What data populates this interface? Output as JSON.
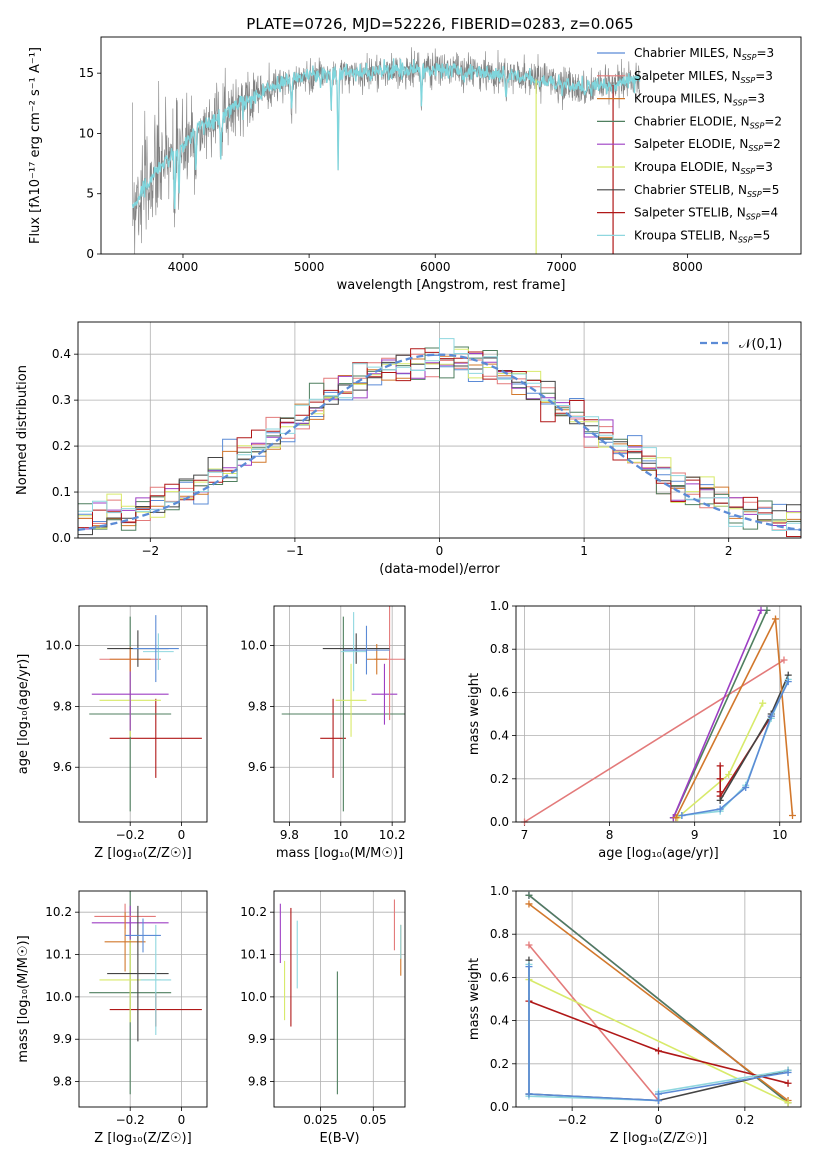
{
  "figure": {
    "title": "PLATE=0726, MJD=52226, FIBERID=0283, z=0.065"
  },
  "chart_data": [
    {
      "id": "spectrum",
      "type": "line",
      "xlabel": "wavelength [Angstrom, rest frame]",
      "ylabel": "Flux [fλ10⁻¹⁷ erg cm⁻² s⁻¹ A⁻¹]",
      "xlim": [
        3350,
        8900
      ],
      "ylim": [
        0,
        18
      ],
      "xticks": [
        4000,
        5000,
        6000,
        7000,
        8000
      ],
      "yticks": [
        0,
        5,
        10,
        15
      ],
      "grid": false,
      "legend_placement": "upper-right",
      "legend": [
        {
          "label": "Chabrier MILES, N",
          "sub": "SSP",
          "suffix": "=3",
          "color": "#5b8bd6"
        },
        {
          "label": "Salpeter MILES, N",
          "sub": "SSP",
          "suffix": "=3",
          "color": "#e37a7a"
        },
        {
          "label": "Kroupa MILES, N",
          "sub": "SSP",
          "suffix": "=3",
          "color": "#d2782c"
        },
        {
          "label": "Chabrier ELODIE, N",
          "sub": "SSP",
          "suffix": "=2",
          "color": "#4f7f5f"
        },
        {
          "label": "Salpeter ELODIE, N",
          "sub": "SSP",
          "suffix": "=2",
          "color": "#9d3fc4"
        },
        {
          "label": "Kroupa ELODIE, N",
          "sub": "SSP",
          "suffix": "=3",
          "color": "#d8ea6a"
        },
        {
          "label": "Chabrier STELIB, N",
          "sub": "SSP",
          "suffix": "=5",
          "color": "#444444"
        },
        {
          "label": "Salpeter STELIB, N",
          "sub": "SSP",
          "suffix": "=4",
          "color": "#b01818"
        },
        {
          "label": "Kroupa STELIB, N",
          "sub": "SSP",
          "suffix": "=5",
          "color": "#8fd7df"
        }
      ],
      "data_color": "#808080",
      "model_color": "#7fd6dd",
      "continuum": {
        "x": [
          3600,
          3700,
          3800,
          3900,
          4000,
          4100,
          4200,
          4300,
          4400,
          4600,
          4800,
          5000,
          5200,
          5400,
          5600,
          5800,
          6000,
          6200,
          6400,
          6600,
          6800,
          7000,
          7200,
          7400,
          7600
        ],
        "y": [
          4,
          5.5,
          7,
          8,
          9,
          10.2,
          10.8,
          11.5,
          12.2,
          13.3,
          14.2,
          14.8,
          15.0,
          15.0,
          15.2,
          15.3,
          15.3,
          15.2,
          15.0,
          14.8,
          14.5,
          14.0,
          13.8,
          14.0,
          14.5
        ]
      },
      "dips": [
        {
          "x": 3934,
          "depth": 5
        },
        {
          "x": 3968,
          "depth": 4
        },
        {
          "x": 4102,
          "depth": 3
        },
        {
          "x": 4300,
          "depth": 3
        },
        {
          "x": 4861,
          "depth": 2.5
        },
        {
          "x": 5175,
          "depth": 3
        },
        {
          "x": 5230,
          "depth": 8
        },
        {
          "x": 5890,
          "depth": 3
        },
        {
          "x": 6563,
          "depth": 2
        }
      ],
      "drop_lines": [
        {
          "x": 6800,
          "color": "#d8ea6a"
        },
        {
          "x": 7410,
          "color": "#b01818"
        }
      ]
    },
    {
      "id": "residuals",
      "type": "histogram",
      "xlabel": "(data-model)/error",
      "ylabel": "Normed distribution",
      "xlim": [
        -2.5,
        2.5
      ],
      "ylim": [
        0,
        0.47
      ],
      "xticks": [
        -2,
        -1,
        0,
        1,
        2
      ],
      "yticks": [
        0.0,
        0.1,
        0.2,
        0.3,
        0.4
      ],
      "grid": true,
      "legend_placement": "upper-right",
      "gaussian_label": "𝒩(0,1)",
      "gaussian_color": "#5b8bd6",
      "bin_edges_from": -2.5,
      "bin_width": 0.1
    },
    {
      "id": "age_vs_Z",
      "type": "errorbar",
      "xlabel": "Z [log₁₀(Z/Z☉)]",
      "ylabel": "age  [log₁₀(age/yr)]",
      "xlim": [
        -0.4,
        0.1
      ],
      "ylim": [
        9.42,
        10.13
      ],
      "xticks": [
        -0.2,
        0.0
      ],
      "yticks": [
        9.6,
        9.8,
        10.0
      ],
      "grid": true,
      "points": [
        {
          "x": -0.1,
          "y": 9.695,
          "xerr": 0.18,
          "yerr": 0.13,
          "color": "#b01818"
        },
        {
          "x": -0.2,
          "y": 9.775,
          "xerr": 0.16,
          "yerr": 0.32,
          "color": "#4f7f5f"
        },
        {
          "x": -0.2,
          "y": 9.82,
          "xerr": 0.12,
          "yerr": 0.12,
          "color": "#d8ea6a"
        },
        {
          "x": -0.2,
          "y": 9.84,
          "xerr": 0.15,
          "yerr": 0.12,
          "color": "#9d3fc4"
        },
        {
          "x": -0.2,
          "y": 9.955,
          "xerr": 0.12,
          "yerr": 0.04,
          "color": "#e37a7a"
        },
        {
          "x": -0.2,
          "y": 9.955,
          "xerr": 0.08,
          "yerr": 0.04,
          "color": "#d2782c"
        },
        {
          "x": -0.17,
          "y": 9.99,
          "xerr": 0.12,
          "yerr": 0.06,
          "color": "#444444"
        },
        {
          "x": -0.09,
          "y": 9.98,
          "xerr": 0.06,
          "yerr": 0.06,
          "color": "#8fd7df"
        },
        {
          "x": -0.1,
          "y": 9.99,
          "xerr": 0.09,
          "yerr": 0.11,
          "color": "#5b8bd6"
        }
      ]
    },
    {
      "id": "age_vs_mass",
      "type": "errorbar",
      "xlabel": "mass [log₁₀(M/M☉)]",
      "ylabel": "",
      "xlim": [
        9.74,
        10.25
      ],
      "ylim": [
        9.42,
        10.13
      ],
      "xticks": [
        9.8,
        10.0,
        10.2
      ],
      "yticks": [
        9.6,
        9.8,
        10.0
      ],
      "grid": true,
      "points": [
        {
          "x": 9.97,
          "y": 9.695,
          "xerr": 0.05,
          "yerr": 0.13,
          "color": "#b01818"
        },
        {
          "x": 10.01,
          "y": 9.775,
          "xerr": 0.24,
          "yerr": 0.32,
          "color": "#4f7f5f"
        },
        {
          "x": 10.04,
          "y": 9.82,
          "xerr": 0.06,
          "yerr": 0.12,
          "color": "#d8ea6a"
        },
        {
          "x": 10.17,
          "y": 9.84,
          "xerr": 0.05,
          "yerr": 0.1,
          "color": "#9d3fc4"
        },
        {
          "x": 10.19,
          "y": 9.955,
          "xerr": 0.06,
          "yerr": 0.2,
          "color": "#e37a7a"
        },
        {
          "x": 10.14,
          "y": 9.955,
          "xerr": 0.04,
          "yerr": 0.05,
          "color": "#d2782c"
        },
        {
          "x": 10.06,
          "y": 9.99,
          "xerr": 0.13,
          "yerr": 0.05,
          "color": "#444444"
        },
        {
          "x": 10.05,
          "y": 9.98,
          "xerr": 0.05,
          "yerr": 0.13,
          "color": "#8fd7df"
        },
        {
          "x": 10.1,
          "y": 9.985,
          "xerr": 0.09,
          "yerr": 0.08,
          "color": "#5b8bd6"
        }
      ]
    },
    {
      "id": "weight_vs_age",
      "type": "line",
      "xlabel": "age  [log₁₀(age/yr)]",
      "ylabel": "mass weight",
      "xlim": [
        6.9,
        10.25
      ],
      "ylim": [
        0,
        1
      ],
      "xticks": [
        7,
        8,
        9,
        10
      ],
      "yticks": [
        0.0,
        0.2,
        0.4,
        0.6,
        0.8,
        1.0
      ],
      "grid": true,
      "series": [
        {
          "color": "#e37a7a",
          "x": [
            7.0,
            10.05
          ],
          "y": [
            0.0,
            0.75
          ]
        },
        {
          "color": "#d8ea6a",
          "x": [
            8.8,
            9.4,
            9.8
          ],
          "y": [
            0.02,
            0.22,
            0.55
          ]
        },
        {
          "color": "#b01818",
          "x": [
            9.3,
            9.3,
            9.3,
            9.3,
            9.9
          ],
          "y": [
            0.26,
            0.2,
            0.14,
            0.12,
            0.49
          ]
        },
        {
          "color": "#444444",
          "x": [
            9.3,
            9.9,
            10.1
          ],
          "y": [
            0.1,
            0.5,
            0.68
          ]
        },
        {
          "color": "#4f7f5f",
          "x": [
            8.75,
            9.85
          ],
          "y": [
            0.02,
            0.98
          ]
        },
        {
          "color": "#9d3fc4",
          "x": [
            8.75,
            9.78
          ],
          "y": [
            0.02,
            0.98
          ]
        },
        {
          "color": "#d2782c",
          "x": [
            8.78,
            9.95,
            10.15
          ],
          "y": [
            0.02,
            0.94,
            0.03
          ]
        },
        {
          "color": "#8fd7df",
          "x": [
            8.85,
            9.3,
            9.6,
            9.9,
            10.1
          ],
          "y": [
            0.03,
            0.05,
            0.17,
            0.48,
            0.66
          ]
        },
        {
          "color": "#5b8bd6",
          "x": [
            8.85,
            9.3,
            9.6,
            9.9,
            10.1
          ],
          "y": [
            0.03,
            0.06,
            0.16,
            0.49,
            0.65
          ]
        }
      ]
    },
    {
      "id": "mass_vs_Z",
      "type": "errorbar",
      "xlabel": "Z [log₁₀(Z/Z☉)]",
      "ylabel": "mass [log₁₀(M/M☉)]",
      "xlim": [
        -0.4,
        0.1
      ],
      "ylim": [
        9.74,
        10.25
      ],
      "xticks": [
        -0.2,
        0.0
      ],
      "yticks": [
        9.8,
        9.9,
        10.0,
        10.1,
        10.2
      ],
      "grid": true,
      "points": [
        {
          "x": -0.1,
          "y": 9.97,
          "xerr": 0.18,
          "yerr": 0.04,
          "color": "#b01818"
        },
        {
          "x": -0.2,
          "y": 10.01,
          "xerr": 0.16,
          "yerr": 0.24,
          "color": "#4f7f5f"
        },
        {
          "x": -0.2,
          "y": 10.04,
          "xerr": 0.12,
          "yerr": 0.1,
          "color": "#d8ea6a"
        },
        {
          "x": -0.2,
          "y": 10.175,
          "xerr": 0.15,
          "yerr": 0.04,
          "color": "#9d3fc4"
        },
        {
          "x": -0.22,
          "y": 10.19,
          "xerr": 0.12,
          "yerr": 0.03,
          "color": "#e37a7a"
        },
        {
          "x": -0.22,
          "y": 10.13,
          "xerr": 0.08,
          "yerr": 0.07,
          "color": "#d2782c"
        },
        {
          "x": -0.17,
          "y": 10.055,
          "xerr": 0.12,
          "yerr": 0.16,
          "color": "#444444"
        },
        {
          "x": -0.1,
          "y": 10.04,
          "xerr": 0.06,
          "yerr": 0.13,
          "color": "#8fd7df"
        },
        {
          "x": -0.15,
          "y": 10.145,
          "xerr": 0.07,
          "yerr": 0.04,
          "color": "#5b8bd6"
        }
      ]
    },
    {
      "id": "mass_vs_EBV",
      "type": "errorbar",
      "xlabel": "E(B-V)",
      "ylabel": "",
      "xlim": [
        0.003,
        0.065
      ],
      "ylim": [
        9.74,
        10.25
      ],
      "xticks": [
        0.025,
        0.05
      ],
      "yticks": [
        9.8,
        9.9,
        10.0,
        10.1,
        10.2
      ],
      "grid": true,
      "points": [
        {
          "x": 0.033,
          "y": 9.915,
          "xerr": 0,
          "yerr": 0.145,
          "color": "#4f7f5f"
        },
        {
          "x": 0.011,
          "y": 10.07,
          "xerr": 0,
          "yerr": 0.14,
          "color": "#b01818"
        },
        {
          "x": 0.008,
          "y": 10.015,
          "xerr": 0,
          "yerr": 0.07,
          "color": "#d8ea6a"
        },
        {
          "x": 0.006,
          "y": 10.15,
          "xerr": 0,
          "yerr": 0.07,
          "color": "#9d3fc4"
        },
        {
          "x": 0.014,
          "y": 10.1,
          "xerr": 0,
          "yerr": 0.08,
          "color": "#8fd7df"
        },
        {
          "x": 0.06,
          "y": 10.17,
          "xerr": 0,
          "yerr": 0.06,
          "color": "#e37a7a"
        },
        {
          "x": 0.063,
          "y": 10.11,
          "xerr": 0,
          "yerr": 0.06,
          "color": "#d2782c"
        },
        {
          "x": 0.063,
          "y": 10.13,
          "xerr": 0,
          "yerr": 0.04,
          "color": "#8fd7df"
        }
      ]
    },
    {
      "id": "weight_vs_Z",
      "type": "line",
      "xlabel": "Z [log₁₀(Z/Z☉)]",
      "ylabel": "mass weight",
      "xlim": [
        -0.33,
        0.33
      ],
      "ylim": [
        0,
        1
      ],
      "xticks": [
        -0.2,
        0.0,
        0.2
      ],
      "yticks": [
        0.0,
        0.2,
        0.4,
        0.6,
        0.8,
        1.0
      ],
      "grid": true,
      "series": [
        {
          "color": "#9d3fc4",
          "x": [
            -0.3,
            0.3
          ],
          "y": [
            0.98,
            0.02
          ]
        },
        {
          "color": "#4f7f5f",
          "x": [
            -0.3,
            0.3
          ],
          "y": [
            0.98,
            0.02
          ]
        },
        {
          "color": "#d2782c",
          "x": [
            -0.3,
            0.3
          ],
          "y": [
            0.94,
            0.03
          ]
        },
        {
          "color": "#e37a7a",
          "x": [
            -0.3,
            0.0
          ],
          "y": [
            0.75,
            0.03
          ]
        },
        {
          "color": "#d8ea6a",
          "x": [
            -0.3,
            0.3
          ],
          "y": [
            0.59,
            0.02
          ]
        },
        {
          "color": "#b01818",
          "x": [
            -0.3,
            0.0,
            0.3
          ],
          "y": [
            0.49,
            0.26,
            0.11
          ]
        },
        {
          "color": "#444444",
          "x": [
            -0.3,
            -0.3,
            0.0,
            0.3
          ],
          "y": [
            0.68,
            0.06,
            0.03,
            0.17
          ]
        },
        {
          "color": "#8fd7df",
          "x": [
            -0.3,
            -0.3,
            0.0,
            0.0,
            0.3
          ],
          "y": [
            0.66,
            0.05,
            0.03,
            0.07,
            0.17
          ]
        },
        {
          "color": "#5b8bd6",
          "x": [
            -0.3,
            -0.3,
            0.0,
            0.0,
            0.3
          ],
          "y": [
            0.65,
            0.06,
            0.03,
            0.06,
            0.16
          ]
        }
      ]
    }
  ]
}
